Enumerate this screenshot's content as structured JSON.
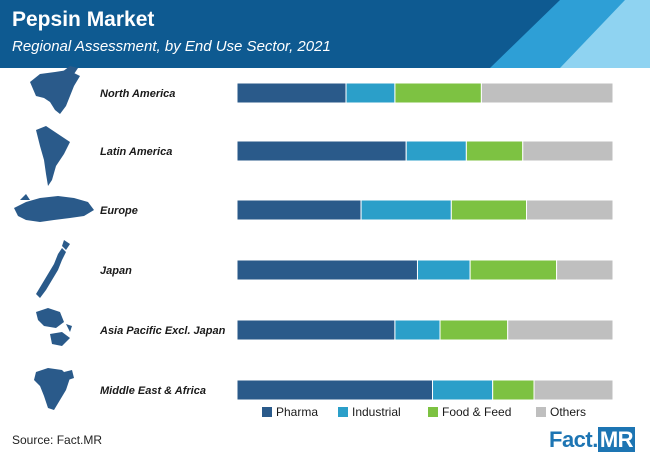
{
  "header": {
    "title": "Pepsin Market",
    "subtitle": "Regional Assessment, by End Use Sector, 2021"
  },
  "colors": {
    "header_dark": "#0e5a91",
    "header_mid": "#2e9fd6",
    "header_light": "#8fd3f1",
    "pharma": "#2a5a8a",
    "industrial": "#2b9fc9",
    "food_feed": "#7dc242",
    "others": "#bfbfbf",
    "map": "#2a5a8a"
  },
  "chart_data": {
    "type": "bar",
    "orientation": "horizontal",
    "stacked": true,
    "percent": true,
    "categories": [
      "North America",
      "Latin America",
      "Europe",
      "Japan",
      "Asia Pacific Excl. Japan",
      "Middle East & Africa"
    ],
    "series": [
      {
        "name": "Pharma",
        "values": [
          29,
          45,
          33,
          48,
          42,
          52
        ]
      },
      {
        "name": "Industrial",
        "values": [
          13,
          16,
          24,
          14,
          12,
          16
        ]
      },
      {
        "name": "Food & Feed",
        "values": [
          23,
          15,
          20,
          23,
          18,
          11
        ]
      },
      {
        "name": "Others",
        "values": [
          35,
          24,
          23,
          15,
          28,
          21
        ]
      }
    ],
    "legend_position": "bottom-right",
    "grid": false
  },
  "map_icons": [
    "north-america-map-icon",
    "latin-america-map-icon",
    "europe-map-icon",
    "japan-map-icon",
    "asia-pacific-map-icon",
    "middle-east-africa-map-icon"
  ],
  "footer": {
    "source": "Source: Fact.MR",
    "logo_brand": "Fact.",
    "logo_suffix": "MR"
  }
}
